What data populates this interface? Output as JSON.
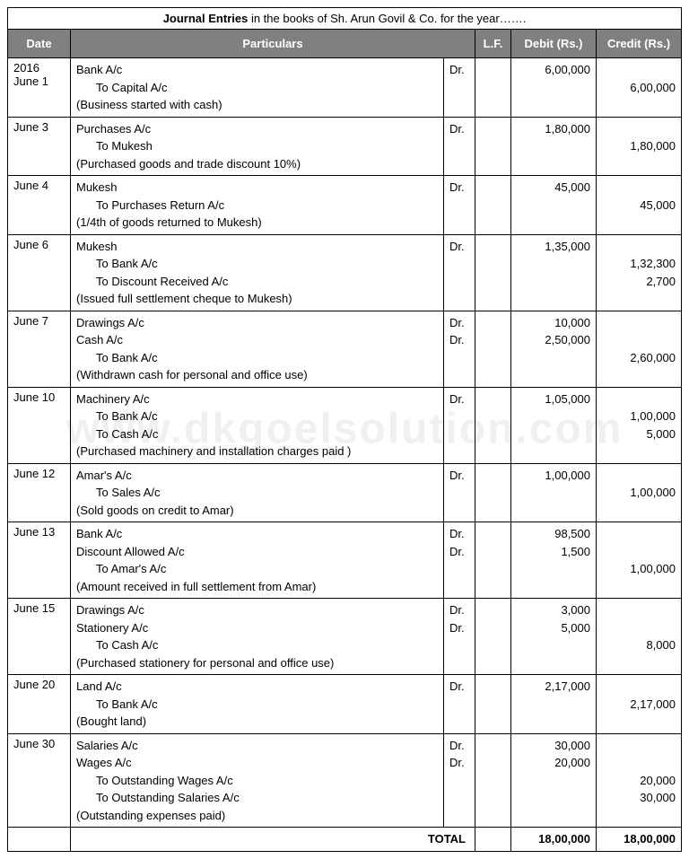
{
  "watermark": "www.dkgoelsolution.com",
  "title": {
    "bold": "Journal Entries",
    "rest": " in the books of Sh. Arun Govil & Co. for the year……."
  },
  "headers": {
    "date": "Date",
    "particulars": "Particulars",
    "lf": "L.F.",
    "debit": "Debit (Rs.)",
    "credit": "Credit (Rs.)"
  },
  "colors": {
    "header_bg": "#808080",
    "header_fg": "#ffffff",
    "border": "#000000",
    "background": "#ffffff"
  },
  "totals": {
    "label": "TOTAL",
    "debit": "18,00,000",
    "credit": "18,00,000"
  },
  "entries": [
    {
      "date": "2016\nJune 1",
      "lines": [
        {
          "text": "Bank A/c",
          "dr": "Dr.",
          "debit": "6,00,000",
          "credit": ""
        },
        {
          "text": "To Capital A/c",
          "indent": true,
          "debit": "",
          "credit": "6,00,000"
        },
        {
          "text": "(Business started with cash)",
          "narration": true
        }
      ]
    },
    {
      "date": "June 3",
      "lines": [
        {
          "text": "Purchases A/c",
          "dr": "Dr.",
          "debit": "1,80,000",
          "credit": ""
        },
        {
          "text": "To Mukesh",
          "indent": true,
          "debit": "",
          "credit": "1,80,000"
        },
        {
          "text": "(Purchased goods and trade discount 10%)",
          "narration": true
        }
      ]
    },
    {
      "date": "June 4",
      "lines": [
        {
          "text": "Mukesh",
          "dr": "Dr.",
          "debit": "45,000",
          "credit": ""
        },
        {
          "text": "To Purchases Return A/c",
          "indent": true,
          "debit": "",
          "credit": "45,000"
        },
        {
          "text": "(1/4th of goods returned to Mukesh)",
          "narration": true
        }
      ]
    },
    {
      "date": "June 6",
      "lines": [
        {
          "text": "Mukesh",
          "dr": "Dr.",
          "debit": "1,35,000",
          "credit": ""
        },
        {
          "text": "To Bank A/c",
          "indent": true,
          "debit": "",
          "credit": "1,32,300"
        },
        {
          "text": "To Discount Received A/c",
          "indent": true,
          "debit": "",
          "credit": "2,700"
        },
        {
          "text": "(Issued full settlement cheque to Mukesh)",
          "narration": true
        }
      ]
    },
    {
      "date": "June 7",
      "lines": [
        {
          "text": "Drawings A/c",
          "dr": "Dr.",
          "debit": "10,000",
          "credit": ""
        },
        {
          "text": "Cash A/c",
          "dr": "Dr.",
          "debit": "2,50,000",
          "credit": ""
        },
        {
          "text": "To Bank A/c",
          "indent": true,
          "debit": "",
          "credit": "2,60,000"
        },
        {
          "text": "(Withdrawn cash for personal and office use)",
          "narration": true
        }
      ]
    },
    {
      "date": "June 10",
      "lines": [
        {
          "text": "Machinery A/c",
          "dr": "Dr.",
          "debit": "1,05,000",
          "credit": ""
        },
        {
          "text": "To Bank A/c",
          "indent": true,
          "debit": "",
          "credit": "1,00,000"
        },
        {
          "text": "To Cash A/c",
          "indent": true,
          "debit": "",
          "credit": "5,000"
        },
        {
          "text": "(Purchased machinery and installation charges paid )",
          "narration": true
        }
      ]
    },
    {
      "date": "June 12",
      "lines": [
        {
          "text": "Amar's A/c",
          "dr": "Dr.",
          "debit": "1,00,000",
          "credit": ""
        },
        {
          "text": "To Sales A/c",
          "indent": true,
          "debit": "",
          "credit": "1,00,000"
        },
        {
          "text": "(Sold goods on credit to Amar)",
          "narration": true
        }
      ]
    },
    {
      "date": "June 13",
      "lines": [
        {
          "text": "Bank A/c",
          "dr": "Dr.",
          "debit": "98,500",
          "credit": ""
        },
        {
          "text": "Discount Allowed A/c",
          "dr": "Dr.",
          "debit": "1,500",
          "credit": ""
        },
        {
          "text": "To Amar's A/c",
          "indent": true,
          "debit": "",
          "credit": "1,00,000"
        },
        {
          "text": "(Amount received in full settlement from Amar)",
          "narration": true
        }
      ]
    },
    {
      "date": "June 15",
      "lines": [
        {
          "text": "Drawings A/c",
          "dr": "Dr.",
          "debit": "3,000",
          "credit": ""
        },
        {
          "text": "Stationery A/c",
          "dr": "Dr.",
          "debit": "5,000",
          "credit": ""
        },
        {
          "text": "To Cash A/c",
          "indent": true,
          "debit": "",
          "credit": "8,000"
        },
        {
          "text": "(Purchased stationery for personal and office use)",
          "narration": true
        }
      ]
    },
    {
      "date": "June 20",
      "lines": [
        {
          "text": "Land A/c",
          "dr": "Dr.",
          "debit": "2,17,000",
          "credit": ""
        },
        {
          "text": "To Bank A/c",
          "indent": true,
          "debit": "",
          "credit": "2,17,000"
        },
        {
          "text": "(Bought land)",
          "narration": true
        }
      ]
    },
    {
      "date": "June 30",
      "lines": [
        {
          "text": "Salaries A/c",
          "dr": "Dr.",
          "debit": "30,000",
          "credit": ""
        },
        {
          "text": "Wages A/c",
          "dr": "Dr.",
          "debit": "20,000",
          "credit": ""
        },
        {
          "text": "To Outstanding Wages A/c",
          "indent": true,
          "debit": "",
          "credit": "20,000"
        },
        {
          "text": "To Outstanding Salaries A/c",
          "indent": true,
          "debit": "",
          "credit": "30,000"
        },
        {
          "text": "(Outstanding expenses paid)",
          "narration": true
        }
      ]
    }
  ]
}
